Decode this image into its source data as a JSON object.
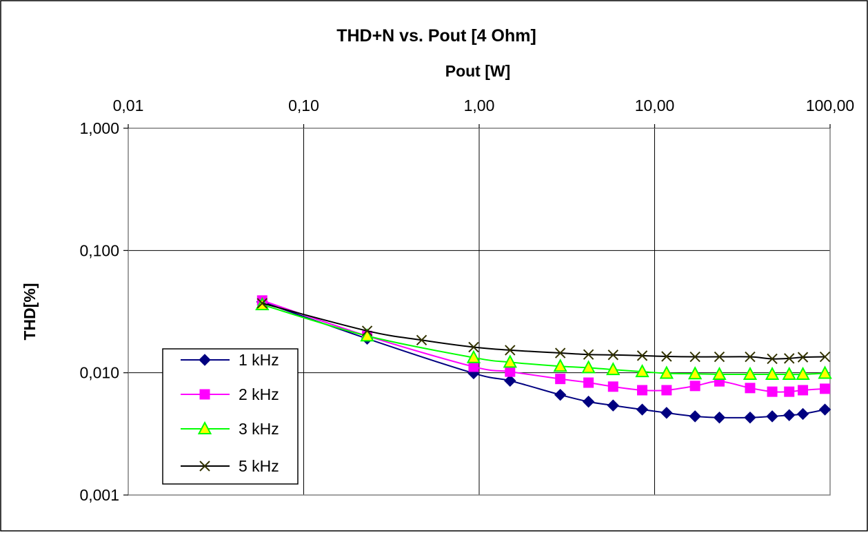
{
  "chart_data": {
    "type": "line",
    "title": "THD+N vs. Pout [4 Ohm]",
    "xlabel": "Pout [W]",
    "ylabel": "THD[%]",
    "xscale": "log",
    "yscale": "log",
    "xlim": [
      0.01,
      100
    ],
    "ylim": [
      0.001,
      1
    ],
    "x_axis_position": "top",
    "x_ticks": [
      {
        "value": 0.01,
        "label": "0,01"
      },
      {
        "value": 0.1,
        "label": "0,10"
      },
      {
        "value": 1,
        "label": "1,00"
      },
      {
        "value": 10,
        "label": "10,00"
      },
      {
        "value": 100,
        "label": "100,00"
      }
    ],
    "y_ticks": [
      {
        "value": 1,
        "label": "1,000"
      },
      {
        "value": 0.1,
        "label": "0,100"
      },
      {
        "value": 0.01,
        "label": "0,010"
      },
      {
        "value": 0.001,
        "label": "0,001"
      }
    ],
    "grid": true,
    "legend_position": "bottom-left",
    "series": [
      {
        "name": "1 kHz",
        "color": "#000080",
        "marker": "diamond",
        "points": [
          [
            0.058,
            0.038
          ],
          [
            0.23,
            0.019
          ],
          [
            0.93,
            0.0099
          ],
          [
            1.5,
            0.0086
          ],
          [
            2.9,
            0.0066
          ],
          [
            4.2,
            0.0058
          ],
          [
            5.8,
            0.0054
          ],
          [
            8.5,
            0.005
          ],
          [
            11.7,
            0.0047
          ],
          [
            17,
            0.0044
          ],
          [
            23.4,
            0.0043
          ],
          [
            35,
            0.0043
          ],
          [
            46.8,
            0.0044
          ],
          [
            58.5,
            0.0045
          ],
          [
            70,
            0.0046
          ],
          [
            93.5,
            0.005
          ]
        ]
      },
      {
        "name": "2 kHz",
        "color": "#FF00FF",
        "marker": "square",
        "points": [
          [
            0.058,
            0.039
          ],
          [
            0.23,
            0.02
          ],
          [
            0.93,
            0.0112
          ],
          [
            1.5,
            0.0102
          ],
          [
            2.9,
            0.0089
          ],
          [
            4.2,
            0.0083
          ],
          [
            5.8,
            0.0077
          ],
          [
            8.5,
            0.0072
          ],
          [
            11.7,
            0.0072
          ],
          [
            17,
            0.0078
          ],
          [
            23.4,
            0.0085
          ],
          [
            35,
            0.0075
          ],
          [
            46.8,
            0.007
          ],
          [
            58.5,
            0.007
          ],
          [
            70,
            0.0072
          ],
          [
            93.5,
            0.0074
          ]
        ]
      },
      {
        "name": "3 kHz",
        "color": "#00FF00",
        "marker": "triangle",
        "marker_fill": "#FFFF00",
        "points": [
          [
            0.058,
            0.036
          ],
          [
            0.23,
            0.02
          ],
          [
            0.93,
            0.0133
          ],
          [
            1.5,
            0.0122
          ],
          [
            2.9,
            0.0113
          ],
          [
            4.2,
            0.011
          ],
          [
            5.8,
            0.0106
          ],
          [
            8.5,
            0.0102
          ],
          [
            11.7,
            0.0099
          ],
          [
            17,
            0.0098
          ],
          [
            23.4,
            0.0097
          ],
          [
            35,
            0.0097
          ],
          [
            46.8,
            0.0097
          ],
          [
            58.5,
            0.0097
          ],
          [
            70,
            0.0097
          ],
          [
            93.5,
            0.0099
          ]
        ]
      },
      {
        "name": "5 kHz",
        "color": "#000000",
        "marker_color": "#333300",
        "marker": "x",
        "points": [
          [
            0.058,
            0.037
          ],
          [
            0.23,
            0.022
          ],
          [
            0.47,
            0.0185
          ],
          [
            0.93,
            0.0162
          ],
          [
            1.5,
            0.0153
          ],
          [
            2.9,
            0.0145
          ],
          [
            4.2,
            0.0141
          ],
          [
            5.8,
            0.014
          ],
          [
            8.5,
            0.0138
          ],
          [
            11.7,
            0.0136
          ],
          [
            17,
            0.0135
          ],
          [
            23.4,
            0.0135
          ],
          [
            35,
            0.0135
          ],
          [
            46.8,
            0.013
          ],
          [
            58.5,
            0.0131
          ],
          [
            70,
            0.0134
          ],
          [
            93.5,
            0.0135
          ]
        ]
      }
    ]
  }
}
